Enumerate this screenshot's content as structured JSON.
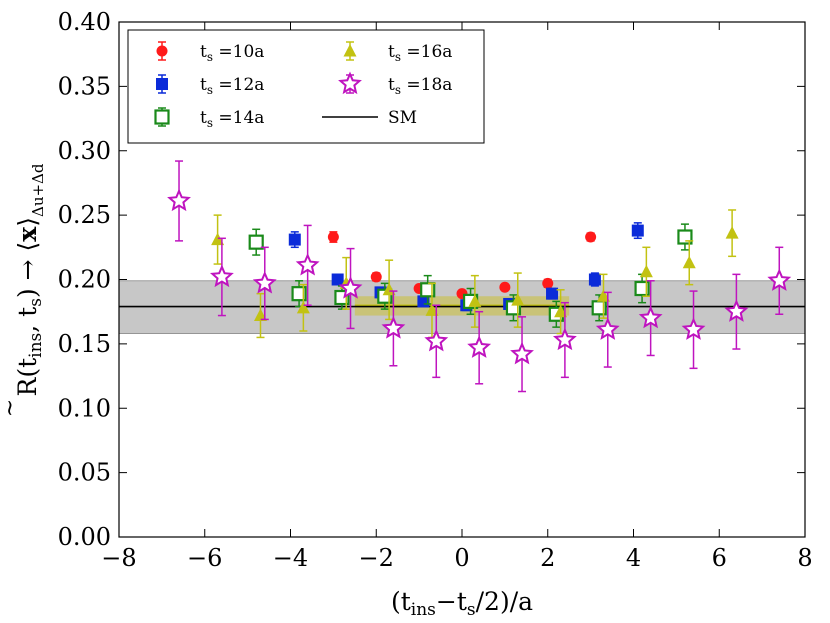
{
  "chart_data": {
    "type": "scatter",
    "title": "",
    "xlabel": "(t_ins−t_s/2)/a",
    "ylabel": "R̃(t_ins, t_s) → ⟨x⟩_Δu+Δd",
    "xlim": [
      -8,
      8
    ],
    "ylim": [
      0.0,
      0.4
    ],
    "x_ticks": [
      -8,
      -6,
      -4,
      -2,
      0,
      2,
      4,
      6,
      8
    ],
    "y_ticks": [
      0.0,
      0.05,
      0.1,
      0.15,
      0.2,
      0.25,
      0.3,
      0.35,
      0.4
    ],
    "x_tick_labels": [
      "−8",
      "−6",
      "−4",
      "−2",
      "0",
      "2",
      "4",
      "6",
      "8"
    ],
    "y_tick_labels": [
      "0.00",
      "0.05",
      "0.10",
      "0.15",
      "0.20",
      "0.25",
      "0.30",
      "0.35",
      "0.40"
    ],
    "grid": false,
    "legend_position": "top-left",
    "sm_band": {
      "center": 0.179,
      "low": 0.158,
      "high": 0.199,
      "label": "SM",
      "color": "#bdbdbd"
    },
    "fit_band": {
      "x_range": [
        -2.5,
        2.5
      ],
      "low": 0.172,
      "high": 0.187,
      "center": 0.18,
      "color": "#c9c25e"
    },
    "series": [
      {
        "name": "ts10",
        "label": "t_s =10a",
        "marker": "circle",
        "color": "#ff1a1a",
        "x": [
          -3,
          -2,
          -1,
          0,
          1,
          2,
          3
        ],
        "y": [
          0.233,
          0.202,
          0.193,
          0.189,
          0.194,
          0.197,
          0.233
        ],
        "err": [
          0.004,
          0.003,
          0.002,
          0.002,
          0.002,
          0.003,
          0.003
        ]
      },
      {
        "name": "ts12",
        "label": "t_s =12a",
        "marker": "square",
        "color": "#0b2bd9",
        "x": [
          -3.9,
          -2.9,
          -1.9,
          -0.9,
          0.1,
          1.1,
          2.1,
          3.1,
          4.1
        ],
        "y": [
          0.231,
          0.2,
          0.19,
          0.183,
          0.18,
          0.181,
          0.189,
          0.2,
          0.238
        ],
        "err": [
          0.006,
          0.004,
          0.004,
          0.004,
          0.004,
          0.004,
          0.004,
          0.005,
          0.006
        ]
      },
      {
        "name": "ts14",
        "label": "t_s =14a",
        "marker": "open-square",
        "color": "#1a8a1a",
        "x": [
          -4.8,
          -3.8,
          -2.8,
          -1.8,
          -0.8,
          0.2,
          1.2,
          2.2,
          3.2,
          4.2,
          5.2
        ],
        "y": [
          0.229,
          0.189,
          0.186,
          0.187,
          0.192,
          0.183,
          0.178,
          0.173,
          0.178,
          0.193,
          0.233
        ],
        "err": [
          0.01,
          0.01,
          0.009,
          0.01,
          0.011,
          0.01,
          0.01,
          0.01,
          0.01,
          0.011,
          0.01
        ]
      },
      {
        "name": "ts16",
        "label": "t_s =16a",
        "marker": "triangle",
        "color": "#c2c212",
        "x": [
          -5.7,
          -4.7,
          -3.7,
          -2.7,
          -1.7,
          -0.7,
          0.3,
          1.3,
          2.3,
          3.3,
          4.3,
          5.3,
          6.3
        ],
        "y": [
          0.231,
          0.172,
          0.178,
          0.197,
          0.192,
          0.176,
          0.183,
          0.184,
          0.175,
          0.187,
          0.206,
          0.213,
          0.236
        ],
        "err": [
          0.019,
          0.017,
          0.018,
          0.02,
          0.023,
          0.021,
          0.02,
          0.021,
          0.017,
          0.017,
          0.019,
          0.017,
          0.018
        ]
      },
      {
        "name": "ts18",
        "label": "t_s =18a",
        "marker": "open-star",
        "color": "#bf14bf",
        "x": [
          -6.6,
          -5.6,
          -4.6,
          -3.6,
          -2.6,
          -1.6,
          -0.6,
          0.4,
          1.4,
          2.4,
          3.4,
          4.4,
          5.4,
          6.4,
          7.4
        ],
        "y": [
          0.261,
          0.202,
          0.197,
          0.211,
          0.193,
          0.162,
          0.152,
          0.147,
          0.142,
          0.153,
          0.161,
          0.17,
          0.161,
          0.175,
          0.199
        ],
        "err": [
          0.031,
          0.03,
          0.028,
          0.031,
          0.031,
          0.029,
          0.028,
          0.028,
          0.029,
          0.029,
          0.029,
          0.029,
          0.03,
          0.029,
          0.026
        ]
      }
    ],
    "legend": [
      {
        "series": "ts10",
        "sub_text": "s",
        "value_text": " =10a"
      },
      {
        "series": "ts12",
        "sub_text": "s",
        "value_text": " =12a"
      },
      {
        "series": "ts14",
        "sub_text": "s",
        "value_text": " =14a"
      },
      {
        "series": "ts16",
        "sub_text": "s",
        "value_text": " =16a"
      },
      {
        "series": "ts18",
        "sub_text": "s",
        "value_text": " =18a"
      },
      {
        "series": "sm",
        "value_text": "SM"
      }
    ]
  }
}
